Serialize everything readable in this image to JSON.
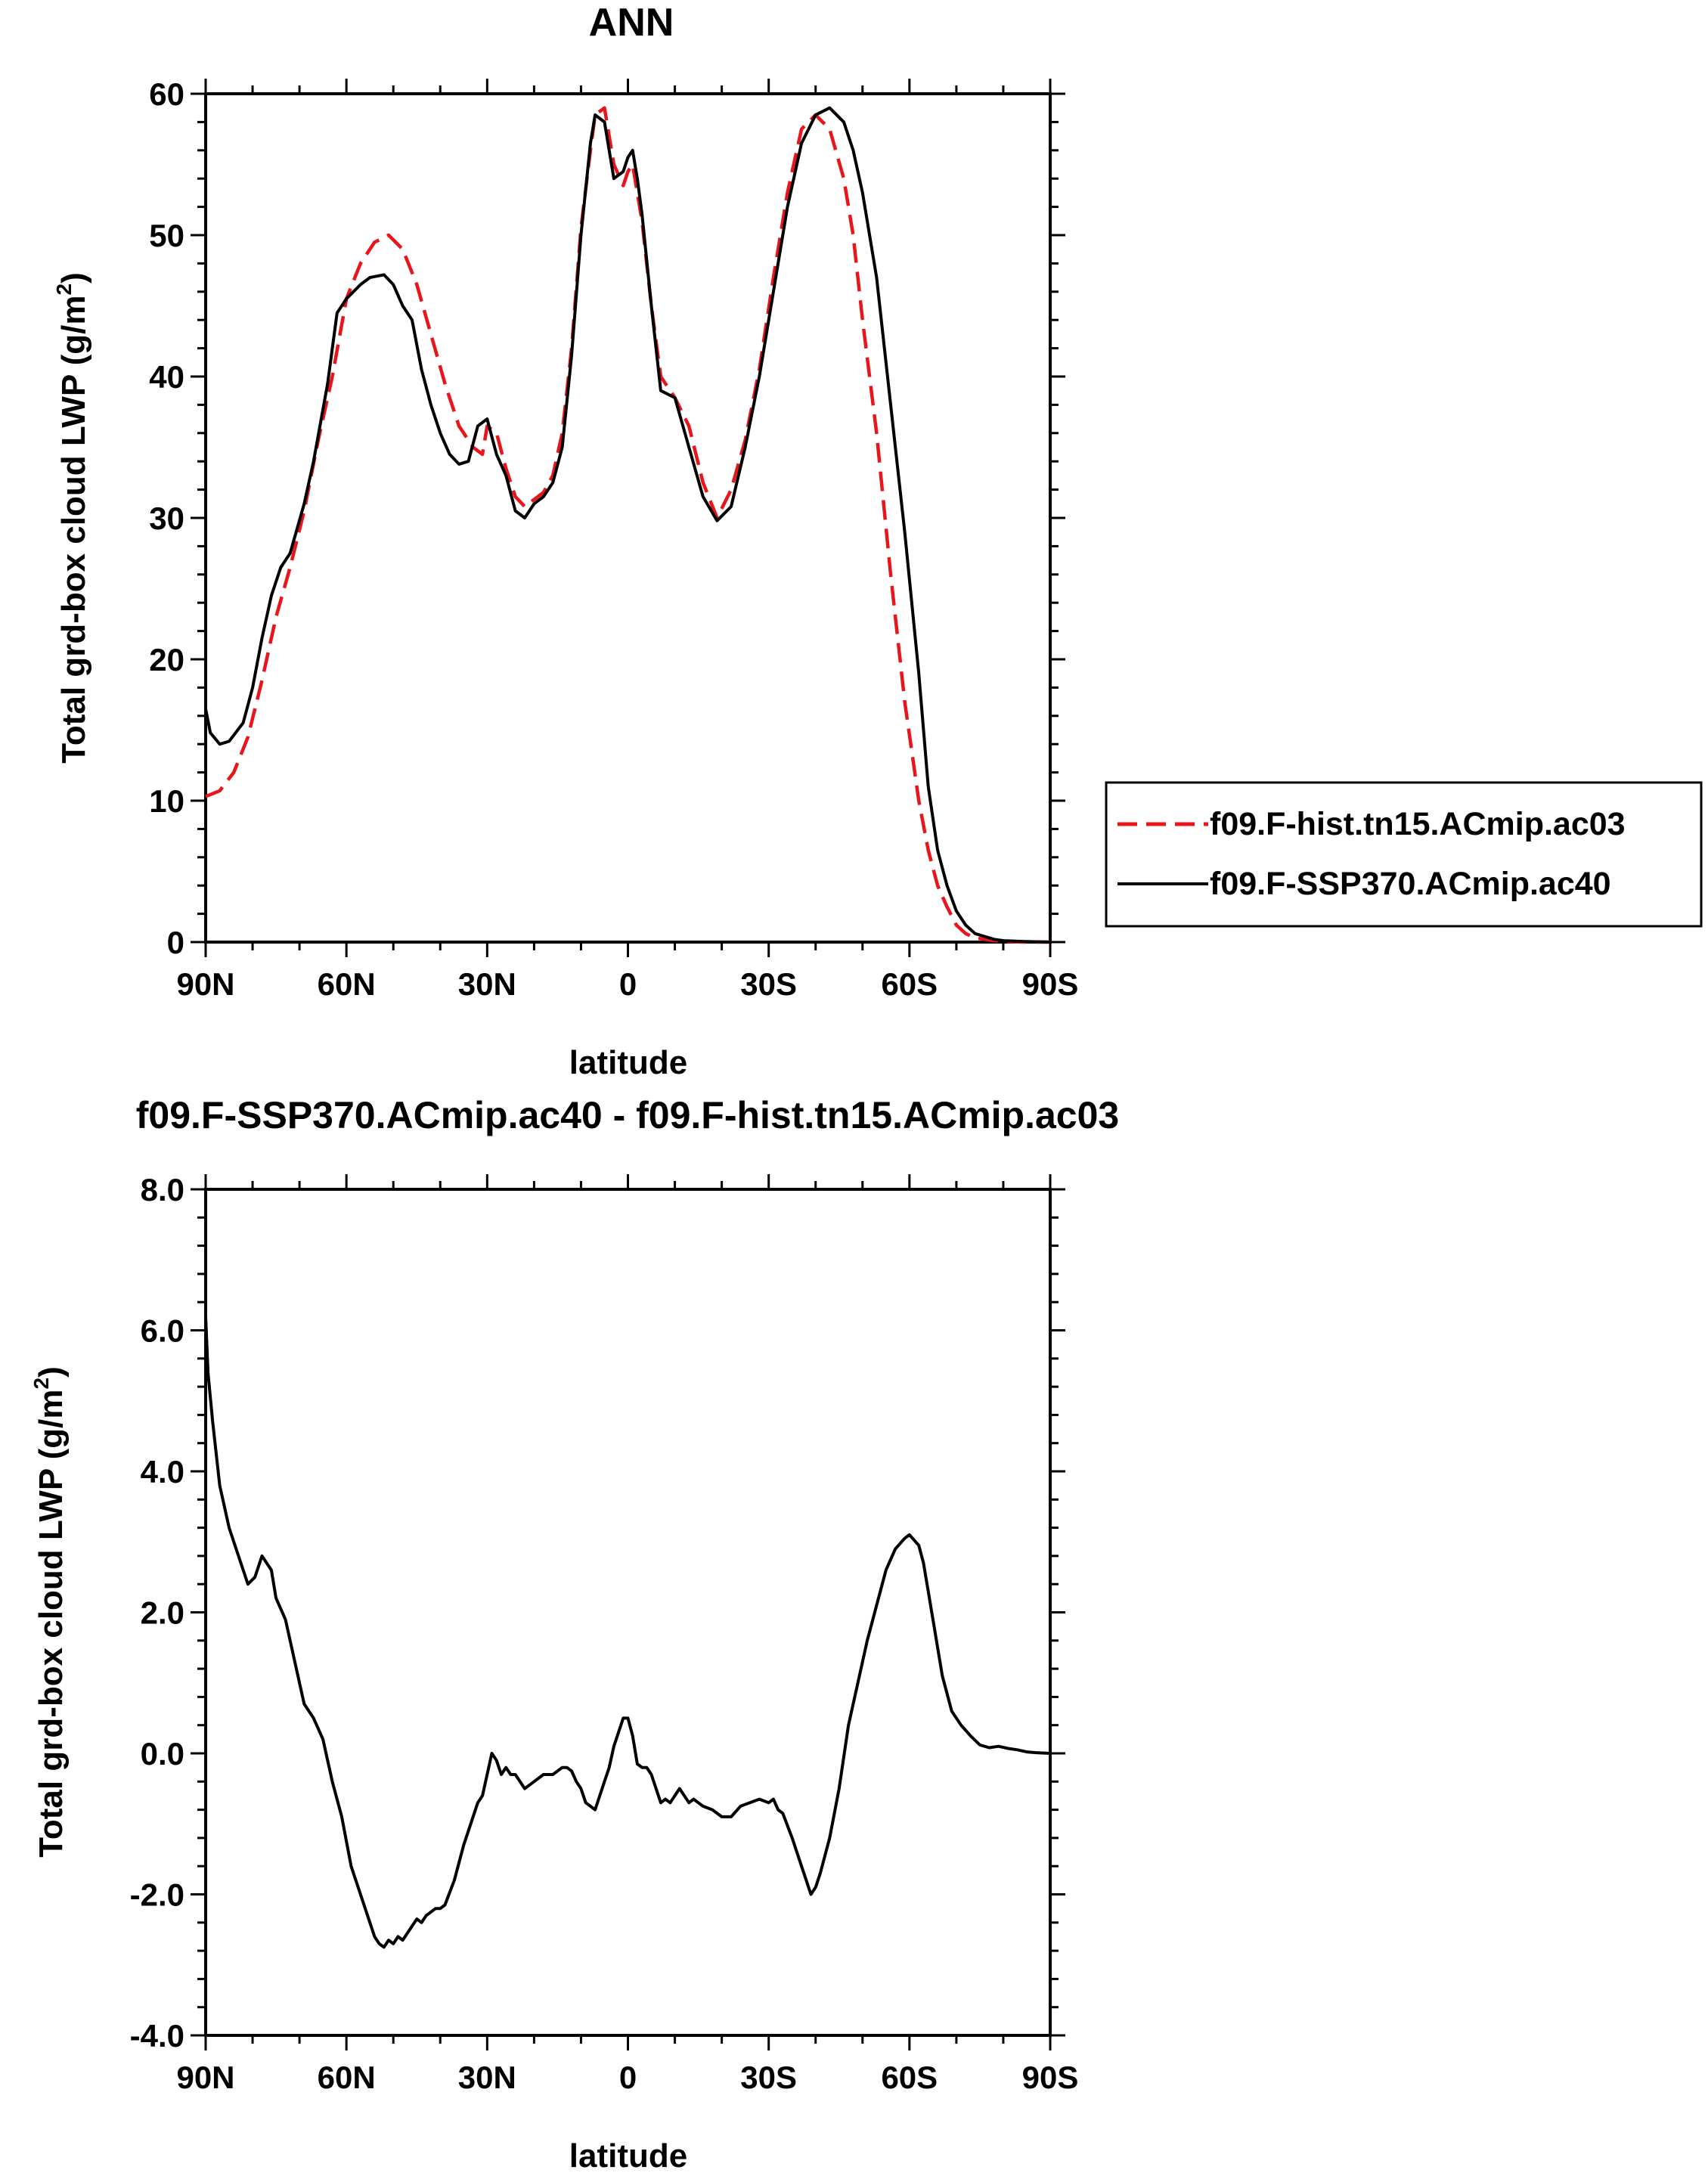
{
  "chart_data": [
    {
      "type": "line",
      "title": "ANN",
      "xlabel": "latitude",
      "ylabel": "Total grd-box cloud LWP (g/m",
      "ylabel_sup": "2",
      "ylabel_close": ")",
      "xlim": [
        90,
        -90
      ],
      "ylim": [
        0,
        60
      ],
      "x_ticks": [
        90,
        60,
        30,
        0,
        -30,
        -60,
        -90
      ],
      "x_tick_labels": [
        "90N",
        "60N",
        "30N",
        "0",
        "30S",
        "60S",
        "90S"
      ],
      "y_ticks": [
        0,
        10,
        20,
        30,
        40,
        50,
        60
      ],
      "y_tick_labels": [
        "0",
        "10",
        "20",
        "30",
        "40",
        "50",
        "60"
      ],
      "grid": false,
      "legend_position": "right-outside",
      "series": [
        {
          "name": "f09.F-hist.tn15.ACmip.ac03",
          "color": "#e8151b",
          "dash": "dashed",
          "x": [
            90,
            87,
            84,
            81,
            78,
            75,
            72,
            69,
            66,
            63,
            60,
            57,
            54,
            51,
            48,
            45,
            42,
            39,
            36,
            33,
            31,
            30,
            28,
            26,
            24,
            22,
            20,
            18,
            16,
            14,
            12,
            10,
            8,
            7,
            5,
            4,
            3,
            1,
            0,
            -1,
            -2,
            -3,
            -5,
            -7,
            -10,
            -13,
            -16,
            -19,
            -22,
            -25,
            -28,
            -31,
            -34,
            -37,
            -40,
            -43,
            -46,
            -48,
            -50,
            -53,
            -56,
            -59,
            -62,
            -64,
            -66,
            -68,
            -70,
            -72,
            -74,
            -76,
            -78,
            -80,
            -84,
            -90
          ],
          "y": [
            10.3,
            10.7,
            12.0,
            14.5,
            18.5,
            23.0,
            26.5,
            30.5,
            35.5,
            40.0,
            45.5,
            48.0,
            49.5,
            50.0,
            49.0,
            46.5,
            43.0,
            39.5,
            36.5,
            35.0,
            34.5,
            36.5,
            36.0,
            33.5,
            31.5,
            30.8,
            31.3,
            31.8,
            33.0,
            36.0,
            42.0,
            50.5,
            56.0,
            58.5,
            59.0,
            57.0,
            55.0,
            53.5,
            54.5,
            55.0,
            53.0,
            51.0,
            45.0,
            40.0,
            38.5,
            36.5,
            32.5,
            30.0,
            32.0,
            35.5,
            40.5,
            47.0,
            53.0,
            57.5,
            58.5,
            57.5,
            54.0,
            50.0,
            44.0,
            36.0,
            26.0,
            17.0,
            10.0,
            6.5,
            4.0,
            2.5,
            1.2,
            0.6,
            0.3,
            0.2,
            0.1,
            0.05,
            0.0,
            0.0
          ]
        },
        {
          "name": "f09.F-SSP370.ACmip.ac40",
          "color": "#000000",
          "dash": "solid",
          "x": [
            90,
            89,
            87,
            85,
            82,
            80,
            78,
            76,
            74,
            72,
            69,
            67,
            64,
            62,
            60,
            57,
            55,
            52,
            50,
            48,
            46,
            44,
            42,
            40,
            38,
            36,
            34,
            32,
            30,
            28,
            26,
            24,
            22,
            20,
            18,
            16,
            14,
            12,
            10,
            8,
            7,
            5,
            4,
            3,
            1,
            0,
            -1,
            -2,
            -3,
            -5,
            -7,
            -10,
            -13,
            -16,
            -19,
            -22,
            -25,
            -28,
            -31,
            -34,
            -37,
            -40,
            -43,
            -46,
            -48,
            -50,
            -53,
            -56,
            -59,
            -62,
            -64,
            -66,
            -68,
            -70,
            -72,
            -74,
            -76,
            -78,
            -80,
            -84,
            -90
          ],
          "y": [
            16.5,
            14.8,
            14.0,
            14.2,
            15.5,
            18.0,
            21.5,
            24.5,
            26.5,
            27.5,
            31.0,
            34.0,
            39.5,
            44.5,
            45.5,
            46.5,
            47.0,
            47.2,
            46.5,
            45.0,
            44.0,
            40.5,
            38.0,
            36.0,
            34.5,
            33.8,
            34.0,
            36.5,
            37.0,
            34.5,
            33.0,
            30.5,
            30.0,
            31.0,
            31.5,
            32.5,
            35.0,
            41.5,
            50.0,
            56.5,
            58.5,
            58.0,
            56.0,
            54.0,
            54.5,
            55.5,
            56.0,
            54.0,
            51.5,
            45.0,
            39.0,
            38.5,
            35.0,
            31.5,
            29.8,
            30.8,
            35.0,
            40.0,
            46.0,
            52.0,
            56.5,
            58.5,
            59.0,
            58.0,
            56.0,
            53.0,
            47.0,
            38.0,
            29.0,
            19.0,
            11.0,
            6.5,
            4.0,
            2.2,
            1.2,
            0.6,
            0.4,
            0.2,
            0.1,
            0.05,
            0.0
          ]
        }
      ]
    },
    {
      "type": "line",
      "title": "f09.F-SSP370.ACmip.ac40 - f09.F-hist.tn15.ACmip.ac03",
      "xlabel": "latitude",
      "ylabel": "Total grd-box cloud LWP (g/m",
      "ylabel_sup": "2",
      "ylabel_close": ")",
      "xlim": [
        90,
        -90
      ],
      "ylim": [
        -4,
        8
      ],
      "x_ticks": [
        90,
        60,
        30,
        0,
        -30,
        -60,
        -90
      ],
      "x_tick_labels": [
        "90N",
        "60N",
        "30N",
        "0",
        "30S",
        "60S",
        "90S"
      ],
      "y_ticks": [
        -4,
        -2,
        0,
        2,
        4,
        6,
        8
      ],
      "y_tick_labels": [
        "-4.0",
        "-2.0",
        "0.0",
        "2.0",
        "4.0",
        "6.0",
        "8.0"
      ],
      "grid": false,
      "series": [
        {
          "color": "#000000",
          "dash": "solid",
          "x": [
            90,
            89.5,
            88.5,
            87,
            85,
            83,
            81,
            79.5,
            78,
            76,
            75,
            73,
            71,
            69,
            67,
            65,
            63,
            61,
            59,
            57,
            55,
            54,
            53,
            52,
            51,
            50,
            49,
            48,
            47,
            46,
            45,
            44,
            43,
            42,
            41,
            40,
            39,
            37,
            35,
            33,
            32,
            31,
            30,
            29,
            28,
            27,
            26,
            25,
            24,
            22,
            20,
            18,
            16,
            14,
            13,
            12,
            11,
            10,
            9,
            8,
            7,
            6,
            5,
            4,
            3,
            2,
            1,
            0,
            -1,
            -2,
            -3,
            -4,
            -5,
            -6,
            -7,
            -8,
            -9,
            -10,
            -11,
            -12,
            -13,
            -14,
            -15,
            -16,
            -18,
            -20,
            -22,
            -24,
            -26,
            -28,
            -30,
            -31,
            -32,
            -33,
            -35,
            -37,
            -38,
            -39,
            -40,
            -41,
            -43,
            -45,
            -47,
            -49,
            -51,
            -53,
            -55,
            -57,
            -59,
            -60,
            -62,
            -63,
            -65,
            -67,
            -69,
            -71,
            -73,
            -75,
            -77,
            -79,
            -81,
            -83,
            -85,
            -87,
            -90
          ],
          "y": [
            6.2,
            5.4,
            4.7,
            3.8,
            3.2,
            2.8,
            2.4,
            2.5,
            2.8,
            2.6,
            2.2,
            1.9,
            1.3,
            0.7,
            0.5,
            0.2,
            -0.4,
            -0.9,
            -1.6,
            -2.0,
            -2.4,
            -2.6,
            -2.7,
            -2.75,
            -2.65,
            -2.7,
            -2.6,
            -2.65,
            -2.55,
            -2.45,
            -2.35,
            -2.4,
            -2.3,
            -2.25,
            -2.2,
            -2.2,
            -2.15,
            -1.8,
            -1.3,
            -0.9,
            -0.7,
            -0.6,
            -0.3,
            0.0,
            -0.1,
            -0.3,
            -0.2,
            -0.3,
            -0.3,
            -0.5,
            -0.4,
            -0.3,
            -0.3,
            -0.2,
            -0.2,
            -0.25,
            -0.4,
            -0.5,
            -0.7,
            -0.75,
            -0.8,
            -0.6,
            -0.4,
            -0.2,
            0.1,
            0.3,
            0.5,
            0.5,
            0.25,
            -0.15,
            -0.2,
            -0.2,
            -0.3,
            -0.5,
            -0.7,
            -0.65,
            -0.7,
            -0.6,
            -0.5,
            -0.6,
            -0.7,
            -0.65,
            -0.7,
            -0.75,
            -0.8,
            -0.9,
            -0.9,
            -0.75,
            -0.7,
            -0.65,
            -0.7,
            -0.65,
            -0.8,
            -0.85,
            -1.2,
            -1.6,
            -1.8,
            -2.0,
            -1.9,
            -1.7,
            -1.2,
            -0.5,
            0.4,
            1.0,
            1.6,
            2.1,
            2.6,
            2.9,
            3.05,
            3.1,
            2.95,
            2.7,
            1.9,
            1.1,
            0.6,
            0.4,
            0.25,
            0.12,
            0.08,
            0.1,
            0.07,
            0.05,
            0.02,
            0.01,
            0.0
          ]
        }
      ]
    }
  ]
}
